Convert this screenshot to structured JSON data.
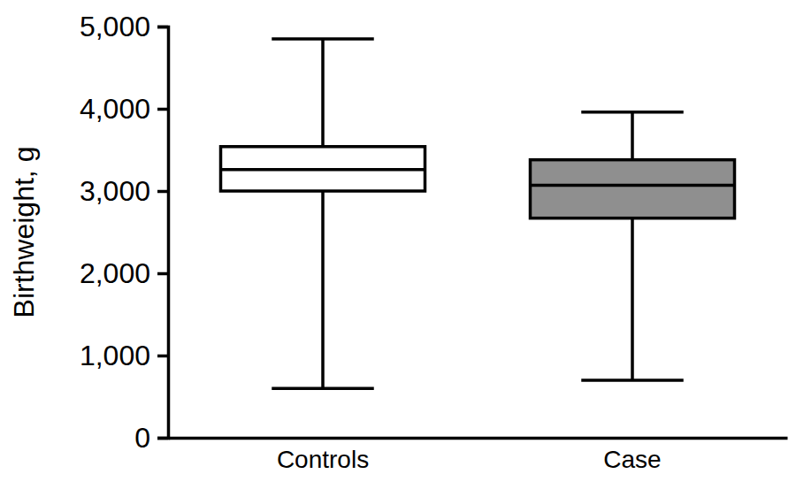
{
  "chart_data": {
    "type": "box",
    "y_label": "Birthweight, g",
    "categories": [
      "Controls",
      "Case"
    ],
    "boxes": [
      {
        "min": 600,
        "q1": 3000,
        "median": 3260,
        "q3": 3540,
        "max": 4850
      },
      {
        "min": 700,
        "q1": 2670,
        "median": 3070,
        "q3": 3380,
        "max": 3960
      }
    ],
    "colors": [
      "#ffffff",
      "#8f8f8f"
    ],
    "ylim": [
      0,
      5000
    ],
    "yticks": [
      0,
      {
        "value": 1000,
        "label": "1,000"
      },
      {
        "value": 2000,
        "label": "2,000"
      },
      {
        "value": 3000,
        "label": "3,000"
      },
      {
        "value": 4000,
        "label": "4,000"
      },
      {
        "value": 5000,
        "label": "5,000"
      }
    ],
    "grid": false
  }
}
